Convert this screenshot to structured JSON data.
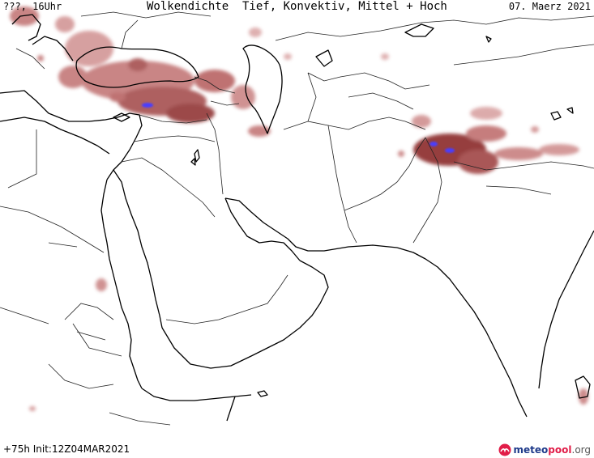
{
  "header": {
    "left": "???, 16Uhr",
    "title": "Wolkendichte  Tief, Konvektiv, Mittel + Hoch",
    "date": "07. Maerz 2021"
  },
  "footer": {
    "run_info": "+75h Init:12Z04MAR2021"
  },
  "logo": {
    "part1": "meteo",
    "part2": "pool",
    "part3": ".org"
  },
  "colors": {
    "cloud_dense": "#8b2c2c",
    "cloud_medium": "#b45a5a",
    "cloud_light": "#d9a3a3",
    "convective": "#4a3cff",
    "coastline": "#000000",
    "border": "#222222"
  }
}
